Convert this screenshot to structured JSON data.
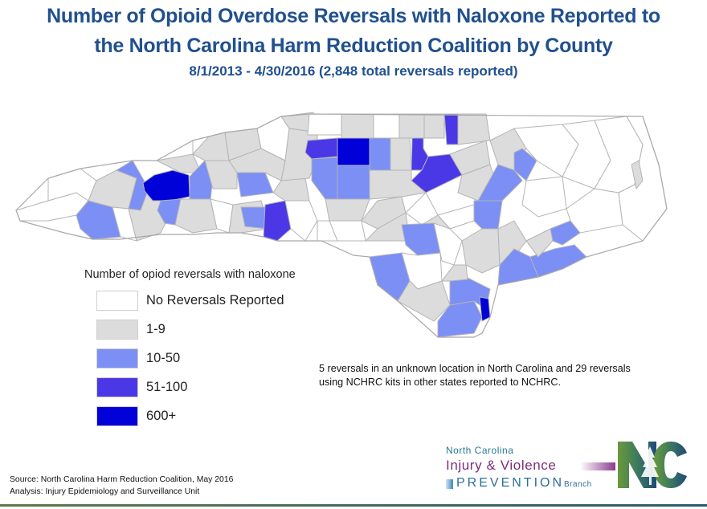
{
  "header": {
    "title_line1": "Number of Opioid Overdose Reversals with Naloxone Reported to",
    "title_line2": "the North Carolina Harm Reduction Coalition by County",
    "subtitle": "8/1/2013 - 4/30/2016 (2,848 total reversals reported)"
  },
  "legend": {
    "title": "Number of opiod reversals with naloxone",
    "items": [
      {
        "label": "No Reversals Reported",
        "color": "#ffffff"
      },
      {
        "label": "1-9",
        "color": "#dcdcdc"
      },
      {
        "label": "10-50",
        "color": "#7b8ff5"
      },
      {
        "label": "51-100",
        "color": "#4a38e6"
      },
      {
        "label": "600+",
        "color": "#0000d8"
      }
    ]
  },
  "note": {
    "line1": "5 reversals in an unknown location in North Carolina and 29 reversals",
    "line2": "using NCHRC kits in other states reported to NCHRC."
  },
  "footer": {
    "source": "Source: North Carolina Harm Reduction Coalition, May 2016",
    "analysis": "Analysis: Injury Epidemiology and Surveillance Unit"
  },
  "logo": {
    "line1": "North Carolina",
    "line2": "Injury & Violence",
    "line3": "PREVENTION",
    "line3_suffix": "Branch",
    "mark": "NC"
  },
  "map": {
    "state": "North Carolina",
    "unit": "County",
    "colors": {
      "none": "#ffffff",
      "low": "#dcdcdc",
      "mid": "#7b8ff5",
      "high": "#4a38e6",
      "top": "#0000d8",
      "border": "#b4b4b4"
    }
  }
}
